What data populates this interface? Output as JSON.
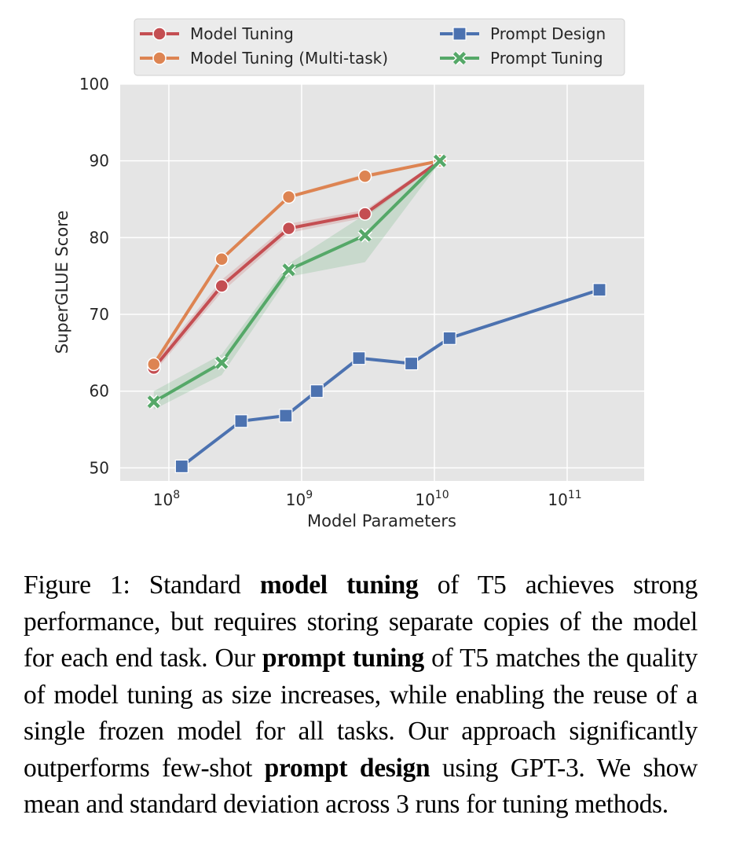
{
  "chart_data": {
    "type": "line",
    "xscale": "log",
    "xlabel": "Model Parameters",
    "ylabel": "SuperGLUE Score",
    "xlim": [
      43000000.0,
      380000000000.0
    ],
    "ylim": [
      48.3,
      100
    ],
    "xticks": [
      {
        "value": 100000000.0,
        "base": "10",
        "exp": "8"
      },
      {
        "value": 1000000000.0,
        "base": "10",
        "exp": "9"
      },
      {
        "value": 10000000000.0,
        "base": "10",
        "exp": "10"
      },
      {
        "value": 100000000000.0,
        "base": "10",
        "exp": "11"
      }
    ],
    "yticks": [
      "50",
      "60",
      "70",
      "80",
      "90",
      "100"
    ],
    "grid": true,
    "legend_position": "top",
    "series": [
      {
        "name": "Model Tuning",
        "color": "#c44e52",
        "marker": "circle",
        "x": [
          77000000.0,
          250000000.0,
          800000000.0,
          3000000000.0,
          11000000000.0
        ],
        "y": [
          63.0,
          73.7,
          81.2,
          83.1,
          90.0
        ],
        "lower": [
          62.4,
          72.9,
          80.6,
          82.6,
          89.8
        ],
        "upper": [
          63.6,
          74.5,
          81.8,
          83.6,
          90.2
        ]
      },
      {
        "name": "Model Tuning (Multi-task)",
        "color": "#dd8452",
        "marker": "circle",
        "x": [
          77000000.0,
          250000000.0,
          800000000.0,
          3000000000.0,
          11000000000.0
        ],
        "y": [
          63.5,
          77.2,
          85.3,
          88.0,
          90.0
        ],
        "lower": [
          63.4,
          77.1,
          85.1,
          87.7,
          89.9
        ],
        "upper": [
          63.6,
          77.3,
          85.5,
          88.3,
          90.1
        ]
      },
      {
        "name": "Prompt Design",
        "color": "#4c72b0",
        "marker": "square",
        "x": [
          125000000.0,
          350000000.0,
          760000000.0,
          1300000000.0,
          2700000000.0,
          6700000000.0,
          13000000000.0,
          175000000000.0
        ],
        "y": [
          50.2,
          56.1,
          56.8,
          60.0,
          64.3,
          63.6,
          66.9,
          73.2
        ]
      },
      {
        "name": "Prompt Tuning",
        "color": "#55a868",
        "marker": "x",
        "x": [
          77000000.0,
          250000000.0,
          800000000.0,
          3000000000.0,
          11000000000.0
        ],
        "y": [
          58.6,
          63.7,
          75.8,
          80.3,
          90.0
        ],
        "lower": [
          57.6,
          62.1,
          74.9,
          76.8,
          89.8
        ],
        "upper": [
          60.0,
          64.8,
          76.6,
          83.0,
          90.2
        ]
      }
    ]
  },
  "caption": {
    "segments": [
      {
        "text": "Figure 1: Standard ",
        "bold": false
      },
      {
        "text": "model tuning",
        "bold": true
      },
      {
        "text": " of T5 achieves strong performance, but requires storing separate copies of the model for each end task.  Our ",
        "bold": false
      },
      {
        "text": "prompt tuning",
        "bold": true
      },
      {
        "text": " of T5 matches the quality of model tuning as size increases, while enabling the reuse of a single frozen model for all tasks. Our approach significantly outperforms few-shot ",
        "bold": false
      },
      {
        "text": "prompt design",
        "bold": true
      },
      {
        "text": " using GPT-3. We show mean and standard deviation across 3 runs for tuning methods.",
        "bold": false
      }
    ]
  }
}
